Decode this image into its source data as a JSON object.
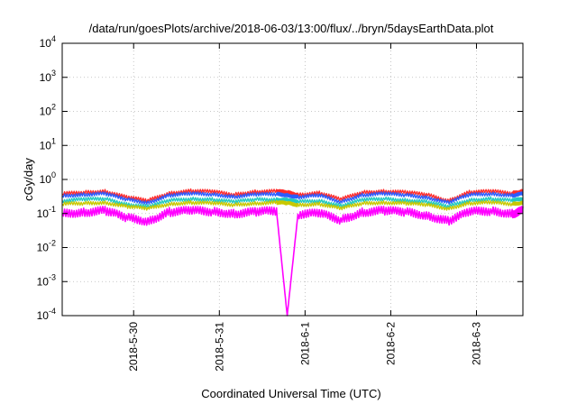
{
  "chart_data": {
    "type": "line",
    "title": "/data/run/goesPlots/archive/2018-06-03/13:00/flux/../bryn/5daysEarthData.plot",
    "xlabel": "Coordinated Universal Time (UTC)",
    "ylabel": "cGy/day",
    "yscale": "log",
    "ylim": [
      0.0001,
      10000
    ],
    "xlim": [
      "2018-05-29 04:00",
      "2018-06-03 13:00"
    ],
    "grid": true,
    "legend": "none",
    "y_ticks": [
      {
        "base": "10",
        "exp": "-4",
        "value": 0.0001
      },
      {
        "base": "10",
        "exp": "-3",
        "value": 0.001
      },
      {
        "base": "10",
        "exp": "-2",
        "value": 0.01
      },
      {
        "base": "10",
        "exp": "-1",
        "value": 0.1
      },
      {
        "base": "10",
        "exp": "0",
        "value": 1
      },
      {
        "base": "10",
        "exp": "1",
        "value": 10
      },
      {
        "base": "10",
        "exp": "2",
        "value": 100
      },
      {
        "base": "10",
        "exp": "3",
        "value": 1000
      },
      {
        "base": "10",
        "exp": "4",
        "value": 10000
      }
    ],
    "x_ticks": [
      {
        "label": "2018-5-30",
        "value": "2018-05-30 00:00"
      },
      {
        "label": "2018-5-31",
        "value": "2018-05-31 00:00"
      },
      {
        "label": "2018-6-1",
        "value": "2018-06-01 00:00"
      },
      {
        "label": "2018-6-2",
        "value": "2018-06-02 00:00"
      },
      {
        "label": "2018-6-3",
        "value": "2018-06-03 00:00"
      }
    ],
    "sample_times": [
      "2018-05-29 04:00",
      "2018-05-29 10:00",
      "2018-05-29 16:00",
      "2018-05-29 22:00",
      "2018-05-30 04:00",
      "2018-05-30 10:00",
      "2018-05-30 16:00",
      "2018-05-30 22:00",
      "2018-05-31 04:00",
      "2018-05-31 10:00",
      "2018-05-31 16:00",
      "2018-05-31 19:00",
      "2018-05-31 22:00",
      "2018-06-01 04:00",
      "2018-06-01 10:00",
      "2018-06-01 16:00",
      "2018-06-01 22:00",
      "2018-06-02 04:00",
      "2018-06-02 10:00",
      "2018-06-02 16:00",
      "2018-06-02 22:00",
      "2018-06-03 04:00",
      "2018-06-03 10:00",
      "2018-06-03 13:00"
    ],
    "series": [
      {
        "color": "#ff2a2a",
        "values": [
          0.38,
          0.42,
          0.45,
          0.3,
          0.24,
          0.4,
          0.46,
          0.44,
          0.36,
          0.44,
          0.45,
          0.42,
          0.36,
          0.4,
          0.26,
          0.42,
          0.45,
          0.42,
          0.36,
          0.24,
          0.42,
          0.45,
          0.4,
          0.46
        ]
      },
      {
        "color": "#2b5cff",
        "values": [
          0.33,
          0.36,
          0.38,
          0.26,
          0.21,
          0.34,
          0.38,
          0.37,
          0.31,
          0.36,
          0.37,
          0.35,
          0.3,
          0.34,
          0.22,
          0.35,
          0.38,
          0.35,
          0.3,
          0.21,
          0.35,
          0.38,
          0.34,
          0.38
        ]
      },
      {
        "color": "#22c9c0",
        "values": [
          0.24,
          0.26,
          0.27,
          0.19,
          0.16,
          0.24,
          0.27,
          0.26,
          0.22,
          0.26,
          0.26,
          0.25,
          0.22,
          0.24,
          0.17,
          0.25,
          0.27,
          0.25,
          0.22,
          0.16,
          0.25,
          0.27,
          0.24,
          0.27
        ]
      },
      {
        "color": "#c8c800",
        "values": [
          0.19,
          0.2,
          0.21,
          0.16,
          0.14,
          0.19,
          0.21,
          0.2,
          0.18,
          0.2,
          0.21,
          0.2,
          0.18,
          0.19,
          0.14,
          0.2,
          0.21,
          0.2,
          0.18,
          0.14,
          0.2,
          0.21,
          0.19,
          0.21
        ]
      },
      {
        "color": "#ff00ff",
        "values": [
          0.1,
          0.11,
          0.12,
          0.075,
          0.06,
          0.11,
          0.12,
          0.115,
          0.1,
          0.11,
          0.12,
          0.0001,
          0.095,
          0.1,
          0.065,
          0.11,
          0.12,
          0.11,
          0.09,
          0.06,
          0.11,
          0.12,
          0.1,
          0.12
        ]
      }
    ]
  }
}
